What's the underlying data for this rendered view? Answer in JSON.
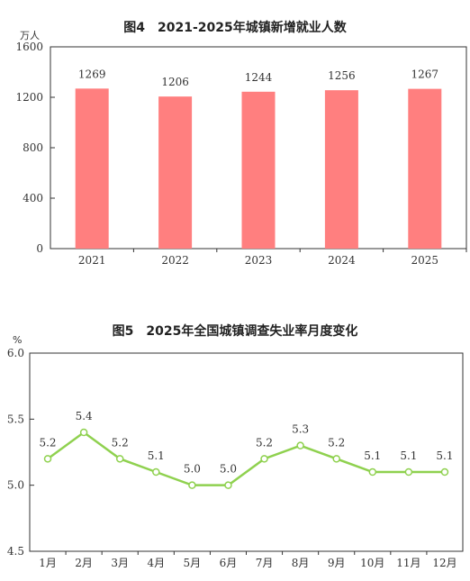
{
  "chart_data": [
    {
      "type": "bar",
      "title": "图4　2021-2025年城镇新增就业人数",
      "unit": "万人",
      "categories": [
        "2021",
        "2022",
        "2023",
        "2024",
        "2025"
      ],
      "values": [
        1269,
        1206,
        1244,
        1256,
        1267
      ],
      "ylim": [
        0,
        1600
      ],
      "yticks": [
        0,
        400,
        800,
        1200,
        1600
      ],
      "grid": false,
      "color": "#ff7f7f"
    },
    {
      "type": "line",
      "title": "图5　2025年全国城镇调查失业率月度变化",
      "unit": "%",
      "categories": [
        "1月",
        "2月",
        "3月",
        "4月",
        "5月",
        "6月",
        "7月",
        "8月",
        "9月",
        "10月",
        "11月",
        "12月"
      ],
      "values": [
        5.2,
        5.4,
        5.2,
        5.1,
        5.0,
        5.0,
        5.2,
        5.3,
        5.2,
        5.1,
        5.1,
        5.1
      ],
      "value_labels": [
        "5.2",
        "5.4",
        "5.2",
        "5.1",
        "5.0",
        "5.0",
        "5.2",
        "5.3",
        "5.2",
        "5.1",
        "5.1",
        "5.1"
      ],
      "ylim": [
        4.5,
        6.0
      ],
      "yticks": [
        "4.5",
        "5.0",
        "5.5",
        "6.0"
      ],
      "grid": false,
      "color": "#8fd14f"
    }
  ]
}
